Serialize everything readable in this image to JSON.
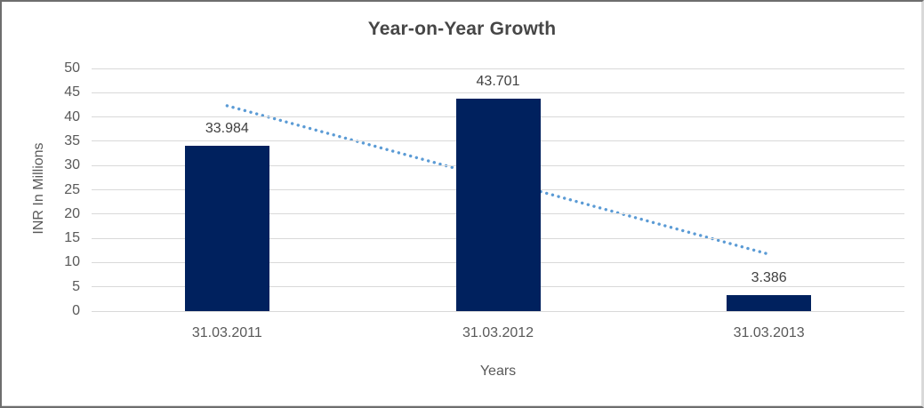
{
  "chart_data": {
    "type": "bar",
    "title": "Year-on-Year Growth",
    "categories": [
      "31.03.2011",
      "31.03.2012",
      "31.03.2013"
    ],
    "values": [
      33.984,
      43.701,
      3.386
    ],
    "data_labels": [
      "33.984",
      "43.701",
      "3.386"
    ],
    "xlabel": "Years",
    "ylabel": "INR In Millions",
    "ylim": [
      0,
      50
    ],
    "ytick_interval": 5,
    "yticks": [
      0,
      5,
      10,
      15,
      20,
      25,
      30,
      35,
      40,
      45,
      50
    ],
    "grid": "horizontal",
    "legend": "none",
    "series_color": "#00215e",
    "trendline": {
      "type": "linear",
      "style": "dotted",
      "color": "#5b9bd5",
      "start_value": 42.32,
      "end_value": 11.72
    }
  },
  "colors": {
    "bar": "#00215e",
    "trendline": "#5b9bd5",
    "gridline": "#d9d9d9",
    "title_text": "#464646",
    "axis_text": "#595959",
    "data_label_text": "#404040",
    "frame_border": "#6e6e6e"
  }
}
